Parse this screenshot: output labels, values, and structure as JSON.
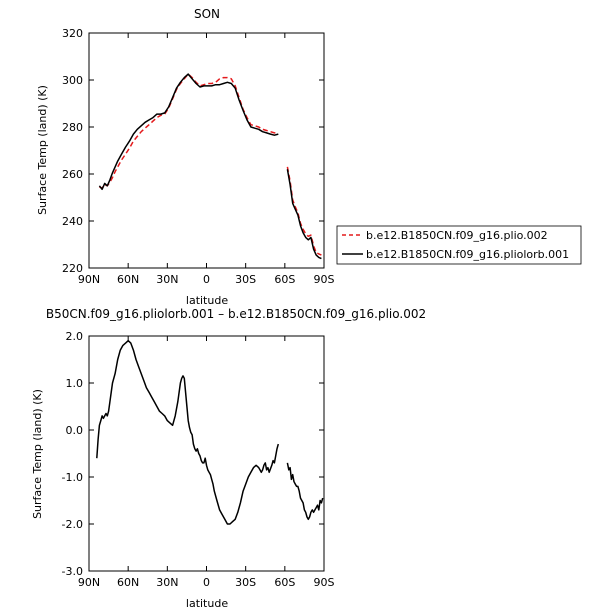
{
  "chart_data": [
    {
      "type": "line",
      "title": "SON",
      "xlabel": "latitude",
      "ylabel": "Surface Temp (land) (K)",
      "xlim": [
        90,
        -90
      ],
      "ylim": [
        220,
        320
      ],
      "x_ticks": [
        90,
        60,
        30,
        0,
        -30,
        -60,
        -90
      ],
      "x_tick_labels": [
        "90N",
        "60N",
        "30N",
        "0",
        "30S",
        "60S",
        "90S"
      ],
      "y_ticks": [
        220,
        240,
        260,
        280,
        300,
        320
      ],
      "y_tick_labels": [
        "220",
        "240",
        "260",
        "280",
        "300",
        "320"
      ],
      "legend_position": "right",
      "series": [
        {
          "name": "b.e12.B1850CN.f09_g16.plio.002",
          "color": "#e41a1c",
          "dash": "dashed",
          "segments": [
            {
              "x": [
                82,
                80,
                78,
                76,
                74,
                72,
                70,
                68,
                65,
                62,
                59,
                56,
                53,
                50,
                47,
                44,
                41,
                38,
                35,
                32,
                29,
                26,
                23,
                20,
                17,
                14,
                11,
                8,
                5,
                2,
                -1,
                -4,
                -7,
                -10,
                -13,
                -16,
                -19,
                -22,
                -25,
                -28,
                -31,
                -34,
                -37,
                -40,
                -43,
                -46,
                -49,
                -52,
                -55
              ],
              "y": [
                254.5,
                254,
                255.5,
                255,
                256.5,
                258.5,
                261,
                263,
                266,
                268.5,
                271,
                274,
                276,
                278,
                279.5,
                281,
                282.5,
                284,
                285,
                285.5,
                288,
                292,
                296,
                298.5,
                300.5,
                302.5,
                301,
                299,
                297.5,
                298,
                298.5,
                298.5,
                299,
                300.5,
                301,
                301,
                300.5,
                297.5,
                292.5,
                287.5,
                284,
                281,
                280.5,
                280,
                279,
                278.5,
                278,
                277.5,
                277.5
              ]
            },
            {
              "x": [
                -62,
                -64,
                -66,
                -68,
                -70,
                -72,
                -74,
                -76,
                -78,
                -80,
                -82,
                -84,
                -86,
                -88
              ],
              "y": [
                263,
                257,
                249,
                246,
                243.5,
                239,
                236.5,
                234.5,
                233.5,
                234,
                229.5,
                226.5,
                226,
                225.5
              ]
            }
          ]
        },
        {
          "name": "b.e12.B1850CN.f09_g16.pliolorb.001",
          "color": "#000000",
          "dash": "solid",
          "segments": [
            {
              "x": [
                82,
                80,
                78,
                76,
                74,
                72,
                70,
                68,
                65,
                62,
                59,
                56,
                53,
                50,
                47,
                44,
                41,
                38,
                35,
                32,
                29,
                26,
                23,
                20,
                17,
                14,
                11,
                8,
                5,
                2,
                -1,
                -4,
                -7,
                -10,
                -13,
                -16,
                -19,
                -22,
                -25,
                -28,
                -31,
                -34,
                -37,
                -40,
                -43,
                -46,
                -49,
                -52,
                -55
              ],
              "y": [
                255,
                253.5,
                256,
                255,
                257.5,
                260.5,
                263,
                265.5,
                268.5,
                271.5,
                274,
                277,
                279,
                280.5,
                282,
                283,
                284,
                285.5,
                285.5,
                286,
                288.5,
                292.5,
                296.5,
                299,
                301,
                302.5,
                300.5,
                298.5,
                297,
                297.5,
                297.5,
                297.5,
                298,
                298,
                298.5,
                299,
                298.5,
                296.5,
                291.5,
                287,
                283,
                280,
                279.5,
                279,
                278,
                277.5,
                277,
                276.5,
                277
              ]
            },
            {
              "x": [
                -62,
                -64,
                -66,
                -68,
                -70,
                -72,
                -74,
                -76,
                -78,
                -80,
                -82,
                -84,
                -86,
                -88
              ],
              "y": [
                262,
                255.5,
                247.5,
                245,
                242.5,
                238,
                235,
                233,
                232,
                233,
                228,
                225.5,
                224.5,
                224
              ]
            }
          ]
        }
      ]
    },
    {
      "type": "line",
      "title": "B50CN.f09_g16.pliolorb.001 – b.e12.B1850CN.f09_g16.plio.002",
      "xlabel": "latitude",
      "ylabel": "Surface Temp (land) (K)",
      "xlim": [
        90,
        -90
      ],
      "ylim": [
        -3.0,
        2.0
      ],
      "x_ticks": [
        90,
        60,
        30,
        0,
        -30,
        -60,
        -90
      ],
      "x_tick_labels": [
        "90N",
        "60N",
        "30N",
        "0",
        "30S",
        "60S",
        "90S"
      ],
      "y_ticks": [
        -3.0,
        -2.0,
        -1.0,
        0.0,
        1.0,
        2.0
      ],
      "y_tick_labels": [
        "-3.0",
        "-2.0",
        "-1.0",
        "0.0",
        "1.0",
        "2.0"
      ],
      "series": [
        {
          "color": "#000000",
          "dash": "solid",
          "segments": [
            {
              "x": [
                84,
                83,
                82,
                81,
                80,
                79,
                78,
                77,
                76,
                75,
                74,
                73,
                72,
                70,
                68,
                66,
                64,
                62,
                60,
                58,
                56,
                54,
                52,
                50,
                48,
                46,
                44,
                42,
                40,
                38,
                36,
                34,
                32,
                30,
                28,
                26,
                24,
                22,
                20,
                19,
                18,
                17,
                16,
                15,
                14,
                13,
                12,
                11,
                10,
                9,
                8,
                7,
                6,
                5,
                4,
                3,
                2,
                1,
                0,
                -1,
                -2,
                -3,
                -4,
                -5,
                -6,
                -8,
                -10,
                -12,
                -14,
                -16,
                -18,
                -20,
                -22,
                -24,
                -26,
                -28,
                -30,
                -32,
                -34,
                -36,
                -38,
                -40,
                -41,
                -42,
                -43,
                -44,
                -45,
                -46,
                -47,
                -48,
                -50,
                -51,
                -52,
                -53,
                -54,
                -55
              ],
              "y": [
                -0.6,
                -0.2,
                0.1,
                0.2,
                0.3,
                0.25,
                0.3,
                0.35,
                0.3,
                0.4,
                0.6,
                0.8,
                1.0,
                1.2,
                1.5,
                1.7,
                1.8,
                1.85,
                1.9,
                1.85,
                1.7,
                1.5,
                1.35,
                1.2,
                1.05,
                0.9,
                0.8,
                0.7,
                0.6,
                0.5,
                0.4,
                0.35,
                0.3,
                0.2,
                0.15,
                0.1,
                0.3,
                0.6,
                1.0,
                1.1,
                1.15,
                1.1,
                0.8,
                0.5,
                0.2,
                0.05,
                -0.05,
                -0.1,
                -0.3,
                -0.4,
                -0.45,
                -0.4,
                -0.5,
                -0.55,
                -0.65,
                -0.7,
                -0.7,
                -0.6,
                -0.75,
                -0.85,
                -0.9,
                -0.95,
                -1.05,
                -1.15,
                -1.3,
                -1.5,
                -1.7,
                -1.8,
                -1.9,
                -2.0,
                -2.0,
                -1.95,
                -1.9,
                -1.75,
                -1.55,
                -1.3,
                -1.15,
                -1.0,
                -0.9,
                -0.8,
                -0.75,
                -0.8,
                -0.85,
                -0.9,
                -0.85,
                -0.75,
                -0.7,
                -0.85,
                -0.8,
                -0.9,
                -0.75,
                -0.65,
                -0.7,
                -0.55,
                -0.4,
                -0.3
              ]
            },
            {
              "x": [
                -62,
                -63,
                -64,
                -65,
                -66,
                -67,
                -68,
                -69,
                -70,
                -71,
                -72,
                -73,
                -74,
                -75,
                -76,
                -77,
                -78,
                -79,
                -80,
                -81,
                -82,
                -83,
                -84,
                -85,
                -86,
                -87,
                -88,
                -89
              ],
              "y": [
                -0.7,
                -0.85,
                -0.8,
                -1.05,
                -0.95,
                -1.1,
                -1.15,
                -1.2,
                -1.2,
                -1.3,
                -1.45,
                -1.5,
                -1.55,
                -1.7,
                -1.75,
                -1.85,
                -1.9,
                -1.85,
                -1.75,
                -1.7,
                -1.75,
                -1.7,
                -1.65,
                -1.6,
                -1.7,
                -1.5,
                -1.55,
                -1.45
              ]
            }
          ]
        }
      ]
    }
  ]
}
